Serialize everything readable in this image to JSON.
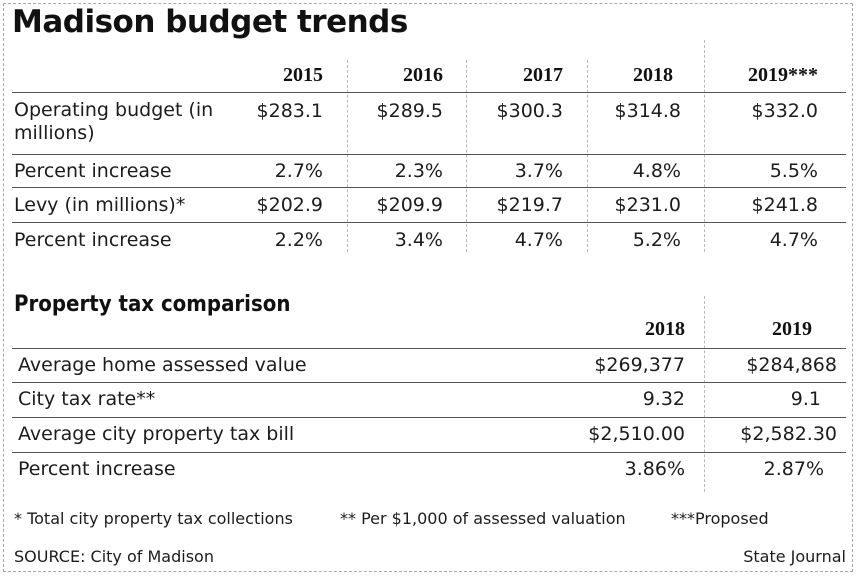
{
  "chart_data": [
    {
      "type": "table",
      "title": "Madison budget trends",
      "columns": [
        "2015",
        "2016",
        "2017",
        "2018",
        "2019***"
      ],
      "rows": [
        {
          "label": "Operating budget (in millions)",
          "values": [
            "$283.1",
            "$289.5",
            "$300.3",
            "$314.8",
            "$332.0"
          ]
        },
        {
          "label": "Percent increase",
          "values": [
            "2.7%",
            "2.3%",
            "3.7%",
            "4.8%",
            "5.5%"
          ]
        },
        {
          "label": "Levy (in millions)*",
          "values": [
            "$202.9",
            "$209.9",
            "$219.7",
            "$231.0",
            "$241.8"
          ]
        },
        {
          "label": "Percent increase",
          "values": [
            "2.2%",
            "3.4%",
            "4.7%",
            "5.2%",
            "4.7%"
          ]
        }
      ]
    },
    {
      "type": "table",
      "title": "Property tax comparison",
      "columns": [
        "2018",
        "2019"
      ],
      "rows": [
        {
          "label": "Average home assessed value",
          "values": [
            "$269,377",
            "$284,868"
          ]
        },
        {
          "label": "City tax rate**",
          "values": [
            "9.32",
            "9.1"
          ]
        },
        {
          "label": "Average city property tax bill",
          "values": [
            "$2,510.00",
            "$2,582.30"
          ]
        },
        {
          "label": "Percent increase",
          "values": [
            "3.86%",
            "2.87%"
          ]
        }
      ]
    }
  ],
  "footnotes": {
    "note1": "* Total city property tax collections",
    "note2": "** Per $1,000 of assessed valuation",
    "note3": "***Proposed"
  },
  "source": "SOURCE: City of Madison",
  "credit": "State Journal",
  "colors": {
    "text": "#1c1c1c",
    "rule": "#555555",
    "divider": "#b8b8b8"
  }
}
